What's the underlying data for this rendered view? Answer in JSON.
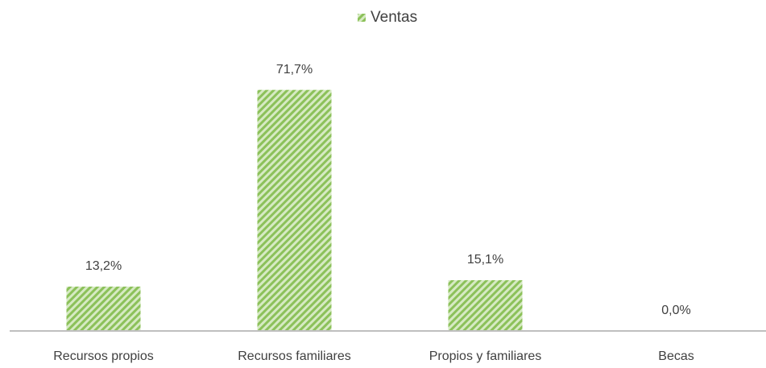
{
  "chart_data": {
    "type": "bar",
    "categories": [
      "Recursos propios",
      "Recursos familiares",
      "Propios y familiares",
      "Becas"
    ],
    "series": [
      {
        "name": "Ventas",
        "color": "#8cc15a",
        "values": [
          13.2,
          71.7,
          15.1,
          0.0
        ],
        "value_labels": [
          "13,2%",
          "71,7%",
          "15,1%",
          "0,0%"
        ]
      }
    ],
    "ylim": [
      0,
      80
    ],
    "legend": "top"
  }
}
